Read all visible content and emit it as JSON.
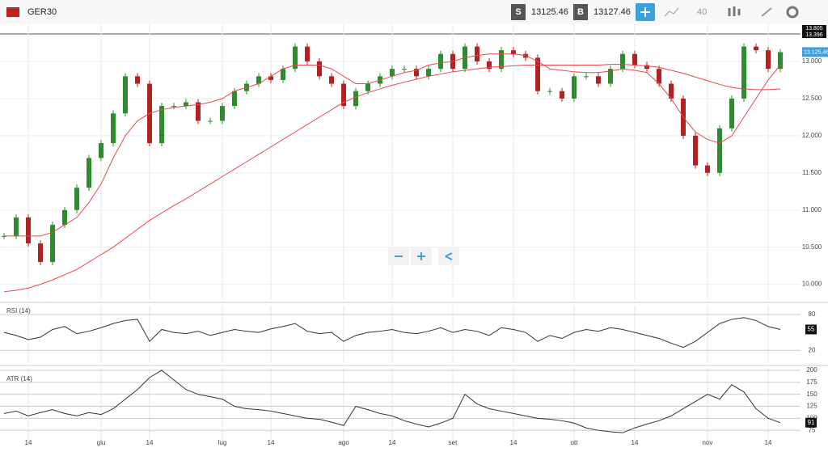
{
  "header": {
    "symbol": "GER30",
    "sell_label": "S",
    "sell_price": "13125.46",
    "buy_label": "B",
    "buy_price": "13127.46",
    "interval": "40",
    "top_tags": [
      "13.805",
      "13.396"
    ]
  },
  "chart_data": [
    {
      "type": "candlestick",
      "ylim": [
        9800,
        13500
      ],
      "yticks": [
        {
          "value": 10000,
          "label": "10.000"
        },
        {
          "value": 10500,
          "label": "10.500"
        },
        {
          "value": 11000,
          "label": "11.000"
        },
        {
          "value": 11500,
          "label": "11.500"
        },
        {
          "value": 12000,
          "label": "12.000"
        },
        {
          "value": 12500,
          "label": "12.500"
        },
        {
          "value": 13000,
          "label": "13.000"
        }
      ],
      "price_tag": {
        "value": 13125.46,
        "label": "13.125,46"
      },
      "series": [
        {
          "color": "#2e8b2e",
          "down_color": "#b22222",
          "values": [
            10650,
            10900,
            10550,
            10300,
            10800,
            11000,
            11300,
            11700,
            11900,
            12300,
            12800,
            12700,
            11900,
            12400,
            12400,
            12450,
            12200,
            12200,
            12400,
            12600,
            12700,
            12800,
            12750,
            12900,
            13200,
            13000,
            12800,
            12700,
            12400,
            12600,
            12700,
            12800,
            12900,
            12900,
            12800,
            12900,
            13100,
            12900,
            13200,
            13000,
            12900,
            13150,
            13100,
            13050,
            12600,
            12600,
            12500,
            12800,
            12800,
            12700,
            12900,
            13100,
            12950,
            12900,
            12700,
            12500,
            12000,
            11600,
            11500,
            12100,
            12500,
            13200,
            13150,
            12900,
            13125
          ]
        },
        {
          "color": "#e8474c",
          "values": [
            10650,
            10650,
            10650,
            10650,
            10700,
            10800,
            10900,
            11100,
            11350,
            11700,
            12000,
            12200,
            12300,
            12350,
            12380,
            12400,
            12420,
            12450,
            12500,
            12600,
            12650,
            12700,
            12800,
            12900,
            12950,
            12950,
            12950,
            12900,
            12800,
            12700,
            12700,
            12750,
            12800,
            12850,
            12880,
            12950,
            12980,
            13000,
            13050,
            13080,
            13100,
            13100,
            13100,
            13080,
            13000,
            12900,
            12880,
            12860,
            12850,
            12850,
            12870,
            12900,
            12880,
            12850,
            12700,
            12500,
            12250,
            12050,
            11950,
            11900,
            12000,
            12250,
            12500,
            12750,
            12950
          ]
        },
        {
          "color": "#e8474c",
          "values": [
            9900,
            9920,
            9950,
            10000,
            10060,
            10130,
            10200,
            10300,
            10400,
            10500,
            10620,
            10740,
            10860,
            10960,
            11060,
            11150,
            11250,
            11350,
            11450,
            11550,
            11650,
            11750,
            11850,
            11950,
            12050,
            12150,
            12250,
            12350,
            12450,
            12520,
            12580,
            12630,
            12680,
            12720,
            12760,
            12800,
            12830,
            12860,
            12880,
            12900,
            12920,
            12930,
            12940,
            12950,
            12950,
            12950,
            12950,
            12950,
            12950,
            12950,
            12960,
            12960,
            12950,
            12940,
            12920,
            12880,
            12840,
            12790,
            12740,
            12690,
            12650,
            12630,
            12620,
            12620,
            12630
          ]
        }
      ]
    },
    {
      "type": "line",
      "title": "RSI (14)",
      "ylim": [
        0,
        95
      ],
      "yticks": [
        20,
        80
      ],
      "color": "#333333",
      "values": [
        50,
        45,
        38,
        42,
        55,
        60,
        48,
        52,
        58,
        65,
        70,
        72,
        35,
        55,
        50,
        48,
        52,
        45,
        50,
        55,
        52,
        50,
        56,
        60,
        65,
        52,
        48,
        50,
        35,
        45,
        50,
        52,
        55,
        50,
        48,
        52,
        58,
        50,
        55,
        52,
        45,
        58,
        55,
        50,
        35,
        45,
        40,
        50,
        55,
        52,
        58,
        55,
        50,
        45,
        40,
        32,
        25,
        35,
        50,
        65,
        72,
        75,
        70,
        60,
        55
      ]
    },
    {
      "type": "line",
      "title": "ATR (14)",
      "ylim": [
        45,
        205
      ],
      "yticks": [
        75,
        100,
        125,
        150,
        175,
        200
      ],
      "color": "#333333",
      "categories": [
        null,
        null,
        "14",
        null,
        null,
        null,
        null,
        null,
        "giu",
        null,
        null,
        null,
        "14",
        null,
        null,
        null,
        null,
        null,
        "lug",
        null,
        null,
        null,
        "14",
        null,
        null,
        null,
        null,
        null,
        "ago",
        null,
        null,
        null,
        "14",
        null,
        null,
        null,
        null,
        "set",
        null,
        null,
        null,
        null,
        "14",
        null,
        null,
        null,
        null,
        "ott",
        null,
        null,
        null,
        null,
        "14",
        null,
        null,
        null,
        null,
        null,
        "nov",
        null,
        null,
        null,
        null,
        "14",
        null
      ],
      "values": [
        110,
        115,
        105,
        112,
        118,
        110,
        105,
        112,
        108,
        120,
        140,
        160,
        185,
        200,
        180,
        160,
        150,
        145,
        140,
        125,
        120,
        118,
        115,
        110,
        105,
        100,
        98,
        92,
        85,
        125,
        118,
        110,
        105,
        95,
        88,
        82,
        90,
        100,
        150,
        130,
        120,
        115,
        110,
        105,
        100,
        98,
        95,
        90,
        80,
        75,
        72,
        70,
        80,
        88,
        95,
        105,
        120,
        135,
        150,
        140,
        170,
        155,
        120,
        100,
        91
      ]
    }
  ]
}
